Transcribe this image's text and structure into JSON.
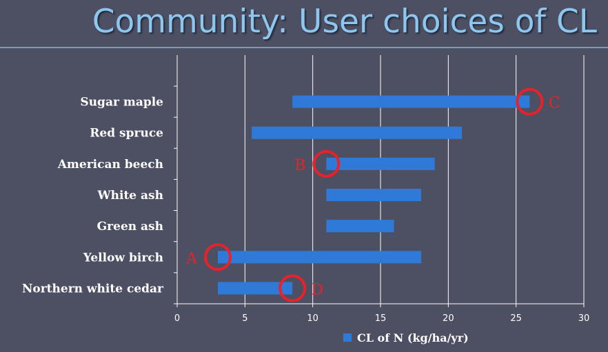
{
  "slide": {
    "title": "Community: User choices of CL"
  },
  "chart_data": {
    "type": "bar",
    "orientation": "horizontal",
    "style": "floating-range",
    "categories": [
      "Sugar maple",
      "Red spruce",
      "American beech",
      "White ash",
      "Green ash",
      "Yellow birch",
      "Northern white cedar"
    ],
    "series": [
      {
        "name": "CL of N (kg/ha/yr)",
        "color": "#2f7ad8",
        "ranges": [
          [
            8.5,
            26
          ],
          [
            5.5,
            21
          ],
          [
            11,
            19
          ],
          [
            11,
            18
          ],
          [
            11,
            16
          ],
          [
            3,
            18
          ],
          [
            3,
            8.5
          ]
        ]
      }
    ],
    "xlim": [
      0,
      30
    ],
    "xticks": [
      "0",
      "5",
      "10",
      "15",
      "20",
      "25",
      "30"
    ],
    "grid": "vertical",
    "legend": "bottom",
    "annotations": [
      {
        "label": "C",
        "category": "Sugar maple",
        "x": 26,
        "side": "right"
      },
      {
        "label": "B",
        "category": "American beech",
        "x": 11,
        "side": "left"
      },
      {
        "label": "A",
        "category": "Yellow birch",
        "x": 3,
        "side": "left"
      },
      {
        "label": "D",
        "category": "Northern white cedar",
        "x": 8.5,
        "side": "right"
      }
    ],
    "annotation_color": "#e8212a",
    "gridline_color": "#ffffff"
  }
}
